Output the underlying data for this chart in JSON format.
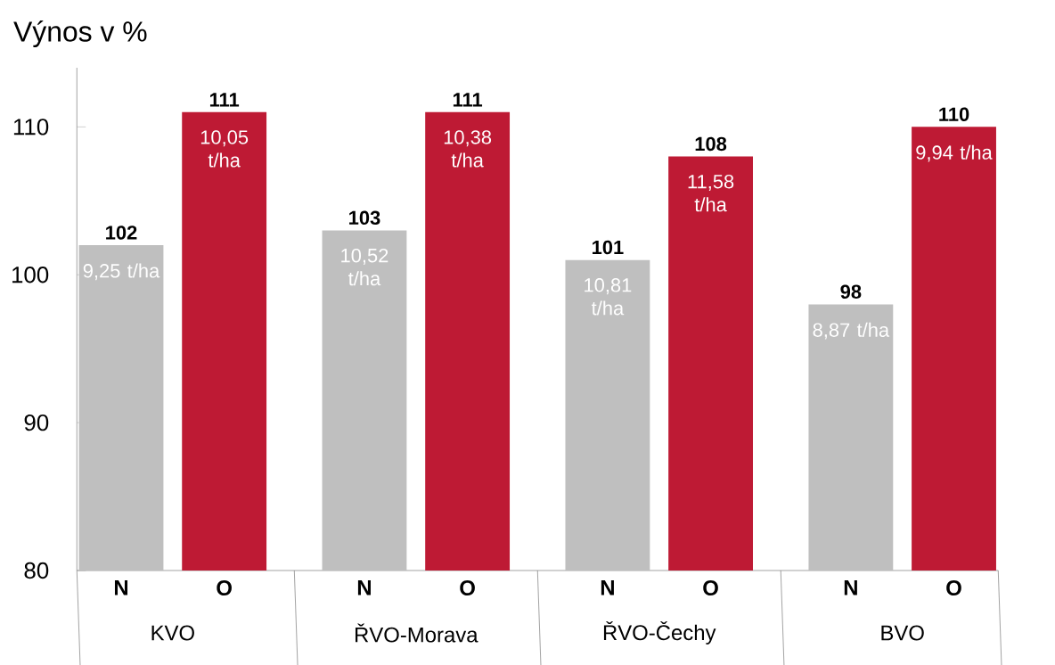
{
  "chart_data": {
    "type": "bar",
    "title": "Výnos v %",
    "categories": [
      "N",
      "O",
      "N",
      "O",
      "N",
      "O",
      "N",
      "O"
    ],
    "values": [
      102,
      111,
      103,
      111,
      101,
      108,
      98,
      110
    ],
    "colors": [
      "#bfbfbf",
      "#be1a34",
      "#bfbfbf",
      "#be1a34",
      "#bfbfbf",
      "#be1a34",
      "#bfbfbf",
      "#be1a34"
    ],
    "ylim": [
      80,
      114
    ],
    "yticks": [
      80,
      90,
      100,
      110
    ],
    "data_labels": true,
    "annotations": [
      "KVO",
      "ŘVO-Morava",
      "ŘVO-Čechy",
      "BVO",
      "9,25 t/ha",
      "10,05 t/ha",
      "10,52 t/ha",
      "10,38 t/ha",
      "10,81 t/ha",
      "11,58 t/ha",
      "8,87 t/ha",
      "9,94 t/ha"
    ]
  }
}
